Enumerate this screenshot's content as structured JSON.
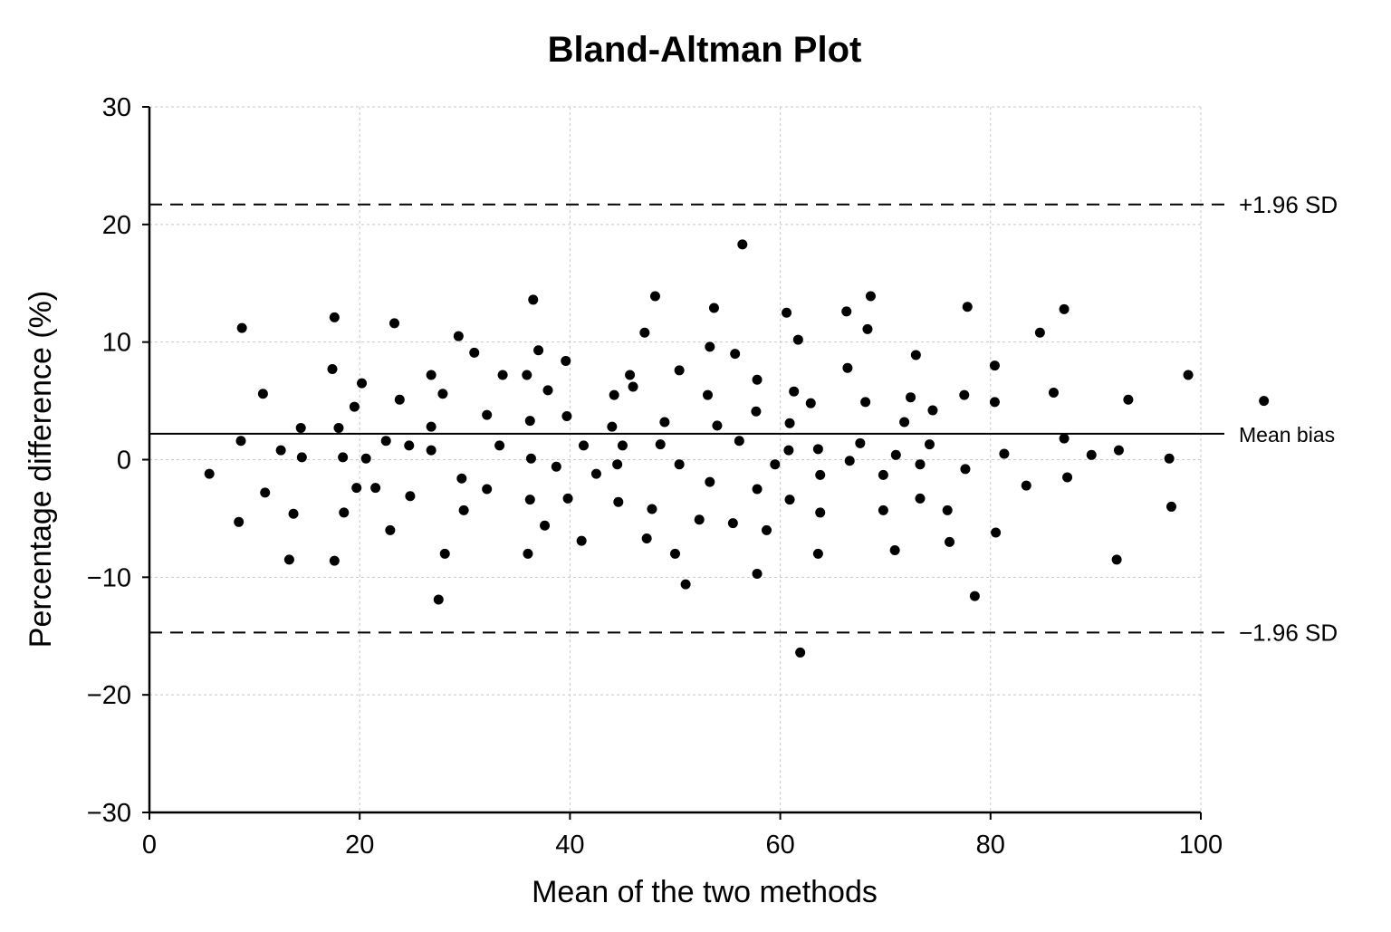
{
  "chart_data": {
    "type": "scatter",
    "title": "Bland-Altman Plot",
    "xlabel": "Mean of the two methods",
    "ylabel": "Percentage difference (%)",
    "xlim": [
      0,
      100
    ],
    "ylim": [
      -30,
      30
    ],
    "xticks": [
      0,
      20,
      40,
      60,
      80,
      100
    ],
    "yticks": [
      -30,
      -20,
      -10,
      0,
      10,
      20,
      30
    ],
    "xtick_labels": [
      "0",
      "20",
      "40",
      "60",
      "80",
      "100"
    ],
    "ytick_labels": [
      "−30",
      "−20",
      "−10",
      "0",
      "10",
      "20",
      "30"
    ],
    "grid": true,
    "grid_style": "dotted",
    "point_color": "#000000",
    "reference_lines": [
      {
        "label": "+1.96 SD",
        "value": 21.7,
        "style": "dashed"
      },
      {
        "label": "Mean bias",
        "value": 2.2,
        "style": "solid"
      },
      {
        "label": "−1.96 SD",
        "value": -14.7,
        "style": "dashed"
      }
    ],
    "points": [
      {
        "x": 5.7,
        "y": -1.2
      },
      {
        "x": 8.5,
        "y": -5.3
      },
      {
        "x": 8.7,
        "y": 1.6
      },
      {
        "x": 8.8,
        "y": 11.2
      },
      {
        "x": 10.8,
        "y": 5.6
      },
      {
        "x": 11.0,
        "y": -2.8
      },
      {
        "x": 12.5,
        "y": 0.8
      },
      {
        "x": 13.3,
        "y": -8.5
      },
      {
        "x": 13.7,
        "y": -4.6
      },
      {
        "x": 14.4,
        "y": 2.7
      },
      {
        "x": 14.5,
        "y": 0.2
      },
      {
        "x": 17.4,
        "y": 7.7
      },
      {
        "x": 17.6,
        "y": 12.1
      },
      {
        "x": 17.6,
        "y": -8.6
      },
      {
        "x": 18.0,
        "y": 2.7
      },
      {
        "x": 18.4,
        "y": 0.2
      },
      {
        "x": 18.5,
        "y": -4.5
      },
      {
        "x": 19.5,
        "y": 4.5
      },
      {
        "x": 19.7,
        "y": -2.4
      },
      {
        "x": 20.2,
        "y": 6.5
      },
      {
        "x": 20.6,
        "y": 0.1
      },
      {
        "x": 21.5,
        "y": -2.4
      },
      {
        "x": 22.5,
        "y": 1.6
      },
      {
        "x": 22.9,
        "y": -6.0
      },
      {
        "x": 23.3,
        "y": 11.6
      },
      {
        "x": 23.8,
        "y": 5.1
      },
      {
        "x": 24.7,
        "y": 1.2
      },
      {
        "x": 24.8,
        "y": -3.1
      },
      {
        "x": 26.8,
        "y": 7.2
      },
      {
        "x": 26.8,
        "y": 2.8
      },
      {
        "x": 26.8,
        "y": 0.8
      },
      {
        "x": 27.5,
        "y": -11.9
      },
      {
        "x": 27.9,
        "y": 5.6
      },
      {
        "x": 28.1,
        "y": -8.0
      },
      {
        "x": 29.4,
        "y": 10.5
      },
      {
        "x": 29.7,
        "y": -1.6
      },
      {
        "x": 29.9,
        "y": -4.3
      },
      {
        "x": 30.9,
        "y": 9.1
      },
      {
        "x": 32.1,
        "y": 3.8
      },
      {
        "x": 32.1,
        "y": -2.5
      },
      {
        "x": 33.3,
        "y": 1.2
      },
      {
        "x": 33.6,
        "y": 7.2
      },
      {
        "x": 35.9,
        "y": 7.2
      },
      {
        "x": 36.0,
        "y": -8.0
      },
      {
        "x": 36.2,
        "y": -3.4
      },
      {
        "x": 36.2,
        "y": 3.3
      },
      {
        "x": 36.3,
        "y": 0.1
      },
      {
        "x": 36.5,
        "y": 13.6
      },
      {
        "x": 37.0,
        "y": 9.3
      },
      {
        "x": 37.6,
        "y": -5.6
      },
      {
        "x": 37.9,
        "y": 5.9
      },
      {
        "x": 38.7,
        "y": -0.6
      },
      {
        "x": 39.6,
        "y": 8.4
      },
      {
        "x": 39.7,
        "y": 3.7
      },
      {
        "x": 39.8,
        "y": -3.3
      },
      {
        "x": 41.1,
        "y": -6.9
      },
      {
        "x": 41.3,
        "y": 1.2
      },
      {
        "x": 42.5,
        "y": -1.2
      },
      {
        "x": 44.0,
        "y": 2.8
      },
      {
        "x": 44.2,
        "y": 5.5
      },
      {
        "x": 44.5,
        "y": -0.4
      },
      {
        "x": 44.6,
        "y": -3.6
      },
      {
        "x": 45.0,
        "y": 1.2
      },
      {
        "x": 45.7,
        "y": 7.2
      },
      {
        "x": 46.0,
        "y": 6.2
      },
      {
        "x": 47.1,
        "y": 10.8
      },
      {
        "x": 47.3,
        "y": -6.7
      },
      {
        "x": 47.8,
        "y": -4.2
      },
      {
        "x": 48.1,
        "y": 13.9
      },
      {
        "x": 48.6,
        "y": 1.3
      },
      {
        "x": 49.0,
        "y": 3.2
      },
      {
        "x": 50.0,
        "y": -8.0
      },
      {
        "x": 50.4,
        "y": 7.6
      },
      {
        "x": 50.4,
        "y": -0.4
      },
      {
        "x": 51.0,
        "y": -10.6
      },
      {
        "x": 52.3,
        "y": -5.1
      },
      {
        "x": 53.1,
        "y": 5.5
      },
      {
        "x": 53.3,
        "y": 9.6
      },
      {
        "x": 53.3,
        "y": -1.9
      },
      {
        "x": 53.7,
        "y": 12.9
      },
      {
        "x": 54.0,
        "y": 2.9
      },
      {
        "x": 55.5,
        "y": -5.4
      },
      {
        "x": 55.7,
        "y": 9.0
      },
      {
        "x": 56.1,
        "y": 1.6
      },
      {
        "x": 56.4,
        "y": 18.3
      },
      {
        "x": 57.7,
        "y": 4.1
      },
      {
        "x": 57.8,
        "y": 6.8
      },
      {
        "x": 57.8,
        "y": -2.5
      },
      {
        "x": 57.8,
        "y": -9.7
      },
      {
        "x": 58.7,
        "y": -6.0
      },
      {
        "x": 59.5,
        "y": -0.4
      },
      {
        "x": 60.6,
        "y": 12.5
      },
      {
        "x": 60.8,
        "y": 0.8
      },
      {
        "x": 60.9,
        "y": 3.1
      },
      {
        "x": 60.9,
        "y": -3.4
      },
      {
        "x": 61.3,
        "y": 5.8
      },
      {
        "x": 61.7,
        "y": 10.2
      },
      {
        "x": 61.9,
        "y": -16.4
      },
      {
        "x": 62.9,
        "y": 4.8
      },
      {
        "x": 63.6,
        "y": 0.9
      },
      {
        "x": 63.6,
        "y": -8.0
      },
      {
        "x": 63.8,
        "y": -1.3
      },
      {
        "x": 63.8,
        "y": -4.5
      },
      {
        "x": 66.3,
        "y": 12.6
      },
      {
        "x": 66.4,
        "y": 7.8
      },
      {
        "x": 66.6,
        "y": -0.1
      },
      {
        "x": 67.6,
        "y": 1.4
      },
      {
        "x": 68.1,
        "y": 4.9
      },
      {
        "x": 68.3,
        "y": 11.1
      },
      {
        "x": 68.6,
        "y": 13.9
      },
      {
        "x": 69.8,
        "y": -1.3
      },
      {
        "x": 69.8,
        "y": -4.3
      },
      {
        "x": 70.9,
        "y": -7.7
      },
      {
        "x": 71.0,
        "y": 0.4
      },
      {
        "x": 71.8,
        "y": 3.2
      },
      {
        "x": 72.4,
        "y": 5.3
      },
      {
        "x": 72.9,
        "y": 8.9
      },
      {
        "x": 73.3,
        "y": -0.4
      },
      {
        "x": 73.3,
        "y": -3.3
      },
      {
        "x": 74.2,
        "y": 1.3
      },
      {
        "x": 74.5,
        "y": 4.2
      },
      {
        "x": 75.9,
        "y": -4.3
      },
      {
        "x": 76.1,
        "y": -7.0
      },
      {
        "x": 77.5,
        "y": 5.5
      },
      {
        "x": 77.6,
        "y": -0.8
      },
      {
        "x": 77.8,
        "y": 13.0
      },
      {
        "x": 78.5,
        "y": -11.6
      },
      {
        "x": 80.4,
        "y": 8.0
      },
      {
        "x": 80.4,
        "y": 4.9
      },
      {
        "x": 80.5,
        "y": -6.2
      },
      {
        "x": 81.3,
        "y": 0.5
      },
      {
        "x": 83.4,
        "y": -2.2
      },
      {
        "x": 84.7,
        "y": 10.8
      },
      {
        "x": 86.0,
        "y": 5.7
      },
      {
        "x": 87.0,
        "y": 1.8
      },
      {
        "x": 87.0,
        "y": 12.8
      },
      {
        "x": 87.3,
        "y": -1.5
      },
      {
        "x": 89.6,
        "y": 0.4
      },
      {
        "x": 92.0,
        "y": -8.5
      },
      {
        "x": 92.2,
        "y": 0.8
      },
      {
        "x": 93.1,
        "y": 5.1
      },
      {
        "x": 97.0,
        "y": 0.1
      },
      {
        "x": 97.2,
        "y": -4.0
      },
      {
        "x": 98.8,
        "y": 7.2
      },
      {
        "x": 106.0,
        "y": 5.0
      }
    ]
  }
}
